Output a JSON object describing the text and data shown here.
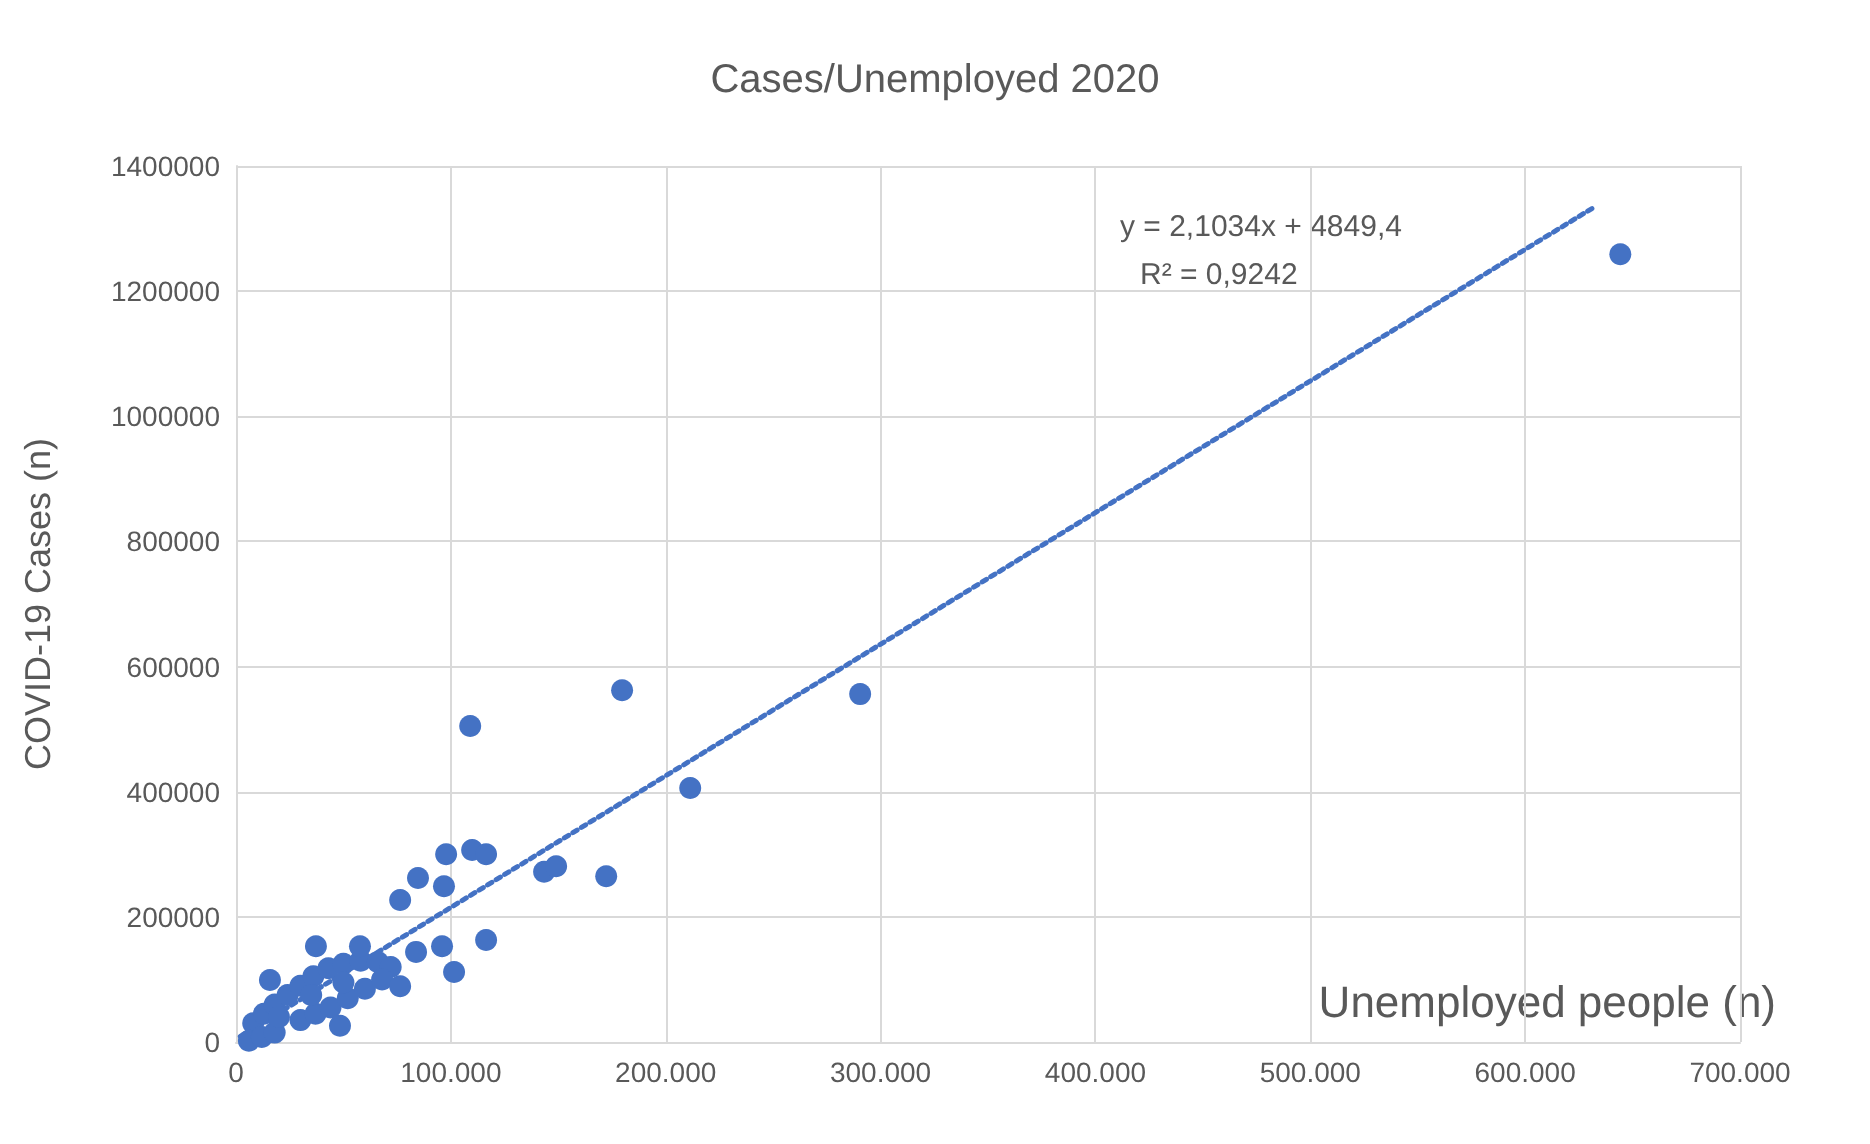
{
  "chart_data": {
    "type": "scatter",
    "title": "Cases/Unemployed 2020",
    "xlabel": "Unemployed people (n)",
    "ylabel": "COVID-19 Cases (n)",
    "annotations": [
      "y = 2,1034x + 4849,4",
      "R² = 0,9242"
    ],
    "series": [
      {
        "color": "#4472c4",
        "marker": "circle",
        "x": [
          8000,
          13000,
          18000,
          24000,
          30000,
          36000,
          43000,
          50000,
          58000,
          66000,
          72000,
          6000,
          12000,
          18000,
          30000,
          37000,
          44000,
          52000,
          60000,
          68000,
          20000,
          35000,
          50000,
          48400,
          15800,
          37200,
          57700,
          76400,
          109000,
          97800,
          109900,
          116400,
          84700,
          96800,
          76400,
          143400,
          149000,
          172300,
          116400,
          83800,
          95900,
          101500,
          179700,
          211400,
          290500,
          644300
        ],
        "values": [
          30000,
          45000,
          60000,
          75000,
          90000,
          105000,
          118000,
          125000,
          130000,
          128000,
          120000,
          2000,
          8000,
          15000,
          35000,
          45000,
          55000,
          70000,
          85000,
          100000,
          40000,
          75000,
          95000,
          26000,
          99000,
          153000,
          153000,
          89000,
          505000,
          300000,
          307000,
          300000,
          262000,
          249000,
          227000,
          272000,
          281000,
          265000,
          163000,
          144000,
          153000,
          112000,
          562000,
          406000,
          556000,
          1259000
        ]
      },
      {
        "type": "line",
        "color": "#4472c4",
        "marker": "none",
        "line_style": "dotted",
        "x": [
          2000,
          632000
        ],
        "values": [
          9000,
          1334000
        ]
      }
    ],
    "xlim": [
      0,
      700000
    ],
    "xticks": [
      0,
      {
        "value": 100000,
        "label": "100.000"
      },
      {
        "value": 200000,
        "label": "200.000"
      },
      {
        "value": 300000,
        "label": "300.000"
      },
      {
        "value": 400000,
        "label": "400.000"
      },
      {
        "value": 500000,
        "label": "500.000"
      },
      {
        "value": 600000,
        "label": "600.000"
      },
      {
        "value": 700000,
        "label": "700.000"
      }
    ],
    "ylim": [
      0,
      1400000
    ],
    "yticks": [
      0,
      200000,
      400000,
      600000,
      800000,
      1000000,
      1200000,
      1400000
    ],
    "grid": true
  }
}
